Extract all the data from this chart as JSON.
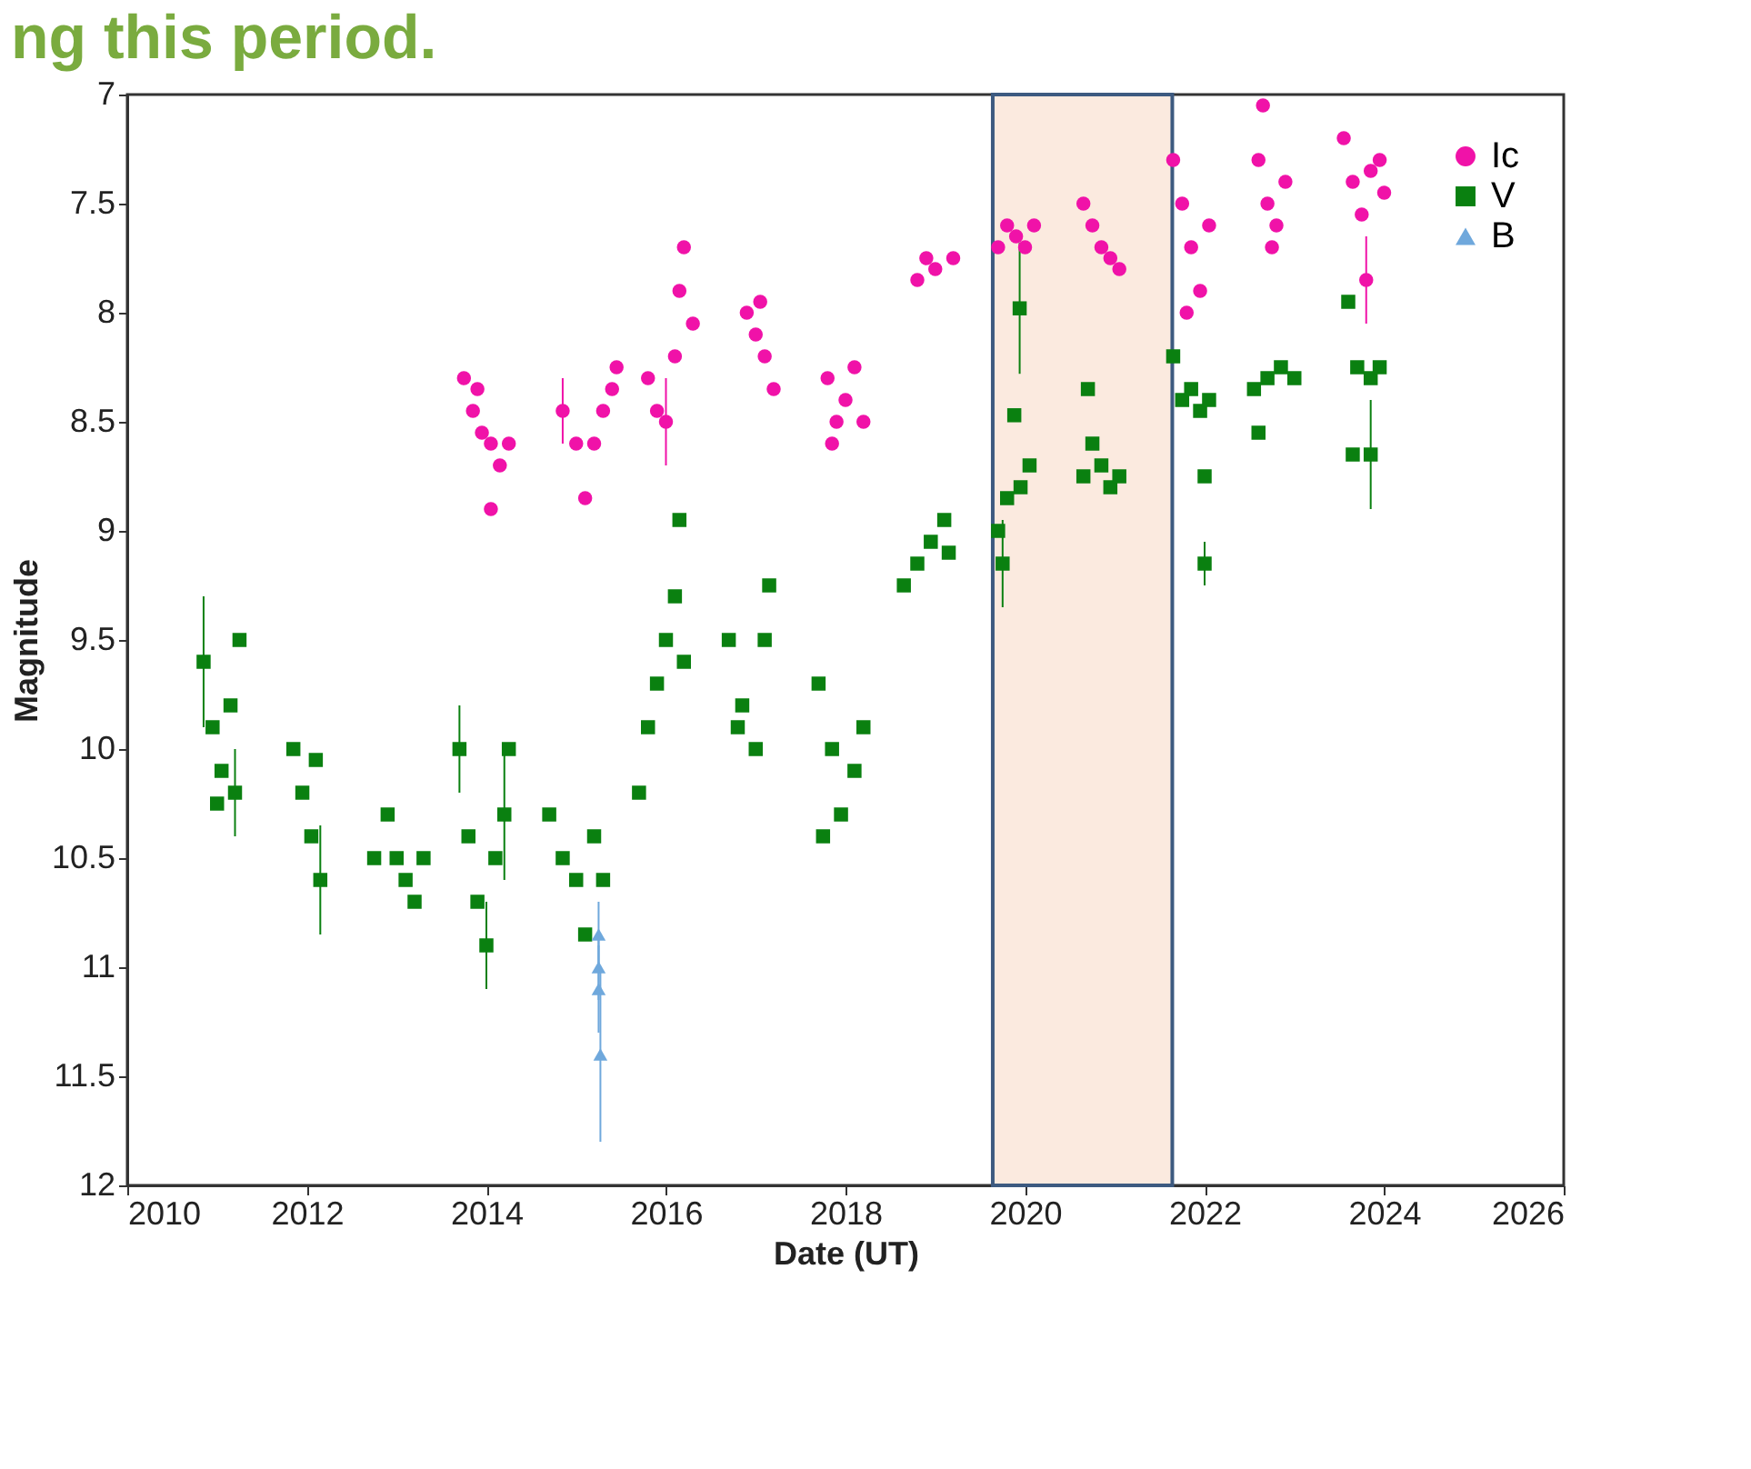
{
  "chart_data": {
    "type": "scatter",
    "title": "ng this period.",
    "xlabel": "Date (UT)",
    "ylabel": "Magnitude",
    "xlim": [
      2010,
      2026
    ],
    "xticks": [
      2010,
      2012,
      2014,
      2016,
      2018,
      2020,
      2022,
      2024,
      2026
    ],
    "ylim": [
      12,
      7
    ],
    "yticks": [
      7,
      7.5,
      8,
      8.5,
      9,
      9.5,
      10,
      10.5,
      11,
      11.5,
      12
    ],
    "grid": false,
    "legend": "top right",
    "bands": [
      {
        "axis": "x",
        "from": 2019.64,
        "to": 2021.64,
        "color": "#fbeadf"
      }
    ],
    "series": [
      {
        "name": "Ic",
        "color": "#f012a8",
        "marker": "circle",
        "x": [
          2013.75,
          2013.85,
          2013.95,
          2014.05,
          2014.15,
          2014.25,
          2014.05,
          2013.9,
          2014.85,
          2015.0,
          2015.1,
          2015.2,
          2015.3,
          2015.4,
          2015.45,
          2015.8,
          2015.9,
          2016.0,
          2016.1,
          2016.15,
          2016.2,
          2016.3,
          2016.9,
          2017.0,
          2017.1,
          2017.2,
          2017.05,
          2017.8,
          2017.9,
          2018.0,
          2018.1,
          2018.2,
          2017.85,
          2018.8,
          2019.0,
          2019.2,
          2018.9,
          2019.7,
          2019.8,
          2019.9,
          2020.0,
          2020.1,
          2020.65,
          2020.75,
          2020.85,
          2020.95,
          2021.05,
          2021.65,
          2021.75,
          2021.85,
          2021.95,
          2022.05,
          2021.8,
          2022.6,
          2022.7,
          2022.8,
          2022.9,
          2022.75,
          2022.65,
          2023.55,
          2023.65,
          2023.75,
          2023.85,
          2023.95,
          2024.0,
          2023.8
        ],
        "values": [
          8.3,
          8.45,
          8.55,
          8.6,
          8.7,
          8.6,
          8.9,
          8.35,
          8.45,
          8.6,
          8.85,
          8.6,
          8.45,
          8.35,
          8.25,
          8.3,
          8.45,
          8.5,
          8.2,
          7.9,
          7.7,
          8.05,
          8.0,
          8.1,
          8.2,
          8.35,
          7.95,
          8.3,
          8.5,
          8.4,
          8.25,
          8.5,
          8.6,
          7.85,
          7.8,
          7.75,
          7.75,
          7.7,
          7.6,
          7.65,
          7.7,
          7.6,
          7.5,
          7.6,
          7.7,
          7.75,
          7.8,
          7.3,
          7.5,
          7.7,
          7.9,
          7.6,
          8.0,
          7.3,
          7.5,
          7.6,
          7.4,
          7.7,
          7.05,
          7.2,
          7.4,
          7.55,
          7.35,
          7.3,
          7.45,
          7.85
        ],
        "errors": [
          null,
          null,
          null,
          null,
          null,
          null,
          null,
          null,
          0.15,
          null,
          null,
          null,
          null,
          null,
          null,
          null,
          null,
          0.2,
          null,
          null,
          null,
          null,
          null,
          null,
          null,
          null,
          null,
          null,
          null,
          null,
          null,
          null,
          null,
          null,
          null,
          null,
          null,
          null,
          null,
          null,
          null,
          null,
          null,
          null,
          null,
          null,
          null,
          null,
          null,
          null,
          null,
          null,
          null,
          null,
          null,
          null,
          null,
          null,
          null,
          null,
          null,
          null,
          null,
          null,
          null,
          0.2
        ]
      },
      {
        "name": "V",
        "color": "#0a8010",
        "marker": "square",
        "x": [
          2010.85,
          2010.95,
          2011.05,
          2011.15,
          2011.25,
          2011.0,
          2011.2,
          2011.85,
          2011.95,
          2012.05,
          2012.15,
          2012.1,
          2012.75,
          2012.9,
          2013.0,
          2013.1,
          2013.2,
          2013.3,
          2013.7,
          2013.8,
          2013.9,
          2014.0,
          2014.1,
          2014.2,
          2014.25,
          2014.7,
          2014.85,
          2015.0,
          2015.1,
          2015.2,
          2015.3,
          2015.7,
          2015.8,
          2015.9,
          2016.0,
          2016.1,
          2016.15,
          2016.2,
          2016.7,
          2016.85,
          2017.0,
          2017.1,
          2017.15,
          2016.8,
          2017.7,
          2017.85,
          2017.95,
          2018.1,
          2018.2,
          2017.75,
          2018.65,
          2018.8,
          2018.95,
          2019.1,
          2019.15,
          2019.7,
          2019.8,
          2019.95,
          2020.05,
          2019.75,
          2019.88,
          2019.94,
          2020.65,
          2020.75,
          2020.85,
          2020.95,
          2021.05,
          2020.7,
          2021.65,
          2021.75,
          2021.85,
          2021.95,
          2022.05,
          2022.0,
          2022.0,
          2022.55,
          2022.7,
          2022.85,
          2023.0,
          2022.6,
          2023.6,
          2023.7,
          2023.85,
          2023.95,
          2023.65,
          2023.85
        ],
        "values": [
          9.6,
          9.9,
          10.1,
          9.8,
          9.5,
          10.25,
          10.2,
          10.0,
          10.2,
          10.4,
          10.6,
          10.05,
          10.5,
          10.3,
          10.5,
          10.6,
          10.7,
          10.5,
          10.0,
          10.4,
          10.7,
          10.9,
          10.5,
          10.3,
          10.0,
          10.3,
          10.5,
          10.6,
          10.85,
          10.4,
          10.6,
          10.2,
          9.9,
          9.7,
          9.5,
          9.3,
          8.95,
          9.6,
          9.5,
          9.8,
          10.0,
          9.5,
          9.25,
          9.9,
          9.7,
          10.0,
          10.3,
          10.1,
          9.9,
          10.4,
          9.25,
          9.15,
          9.05,
          8.95,
          9.1,
          9.0,
          8.85,
          8.8,
          8.7,
          9.15,
          8.47,
          7.98,
          8.75,
          8.6,
          8.7,
          8.8,
          8.75,
          8.35,
          8.2,
          8.4,
          8.35,
          8.45,
          8.4,
          8.75,
          9.15,
          8.35,
          8.3,
          8.25,
          8.3,
          8.55,
          7.95,
          8.25,
          8.3,
          8.25,
          8.65,
          8.65
        ],
        "errors": [
          0.3,
          null,
          null,
          null,
          null,
          null,
          0.2,
          null,
          null,
          null,
          0.25,
          null,
          null,
          null,
          null,
          null,
          null,
          null,
          0.2,
          null,
          null,
          0.2,
          null,
          0.3,
          null,
          null,
          null,
          null,
          null,
          null,
          null,
          null,
          null,
          null,
          null,
          null,
          null,
          null,
          null,
          null,
          null,
          null,
          null,
          null,
          null,
          null,
          null,
          null,
          null,
          null,
          null,
          null,
          null,
          null,
          null,
          null,
          null,
          null,
          null,
          0.2,
          null,
          0.3,
          null,
          null,
          null,
          null,
          null,
          null,
          null,
          null,
          null,
          null,
          null,
          null,
          0.1,
          null,
          null,
          null,
          null,
          null,
          null,
          null,
          null,
          null,
          null,
          0.25
        ]
      },
      {
        "name": "B",
        "color": "#6fa8dc",
        "marker": "triangle",
        "x": [
          2015.25,
          2015.25,
          2015.25,
          2015.27
        ],
        "values": [
          10.85,
          11.0,
          11.1,
          11.4
        ],
        "errors": [
          0.15,
          0.15,
          0.2,
          0.4
        ]
      }
    ]
  }
}
